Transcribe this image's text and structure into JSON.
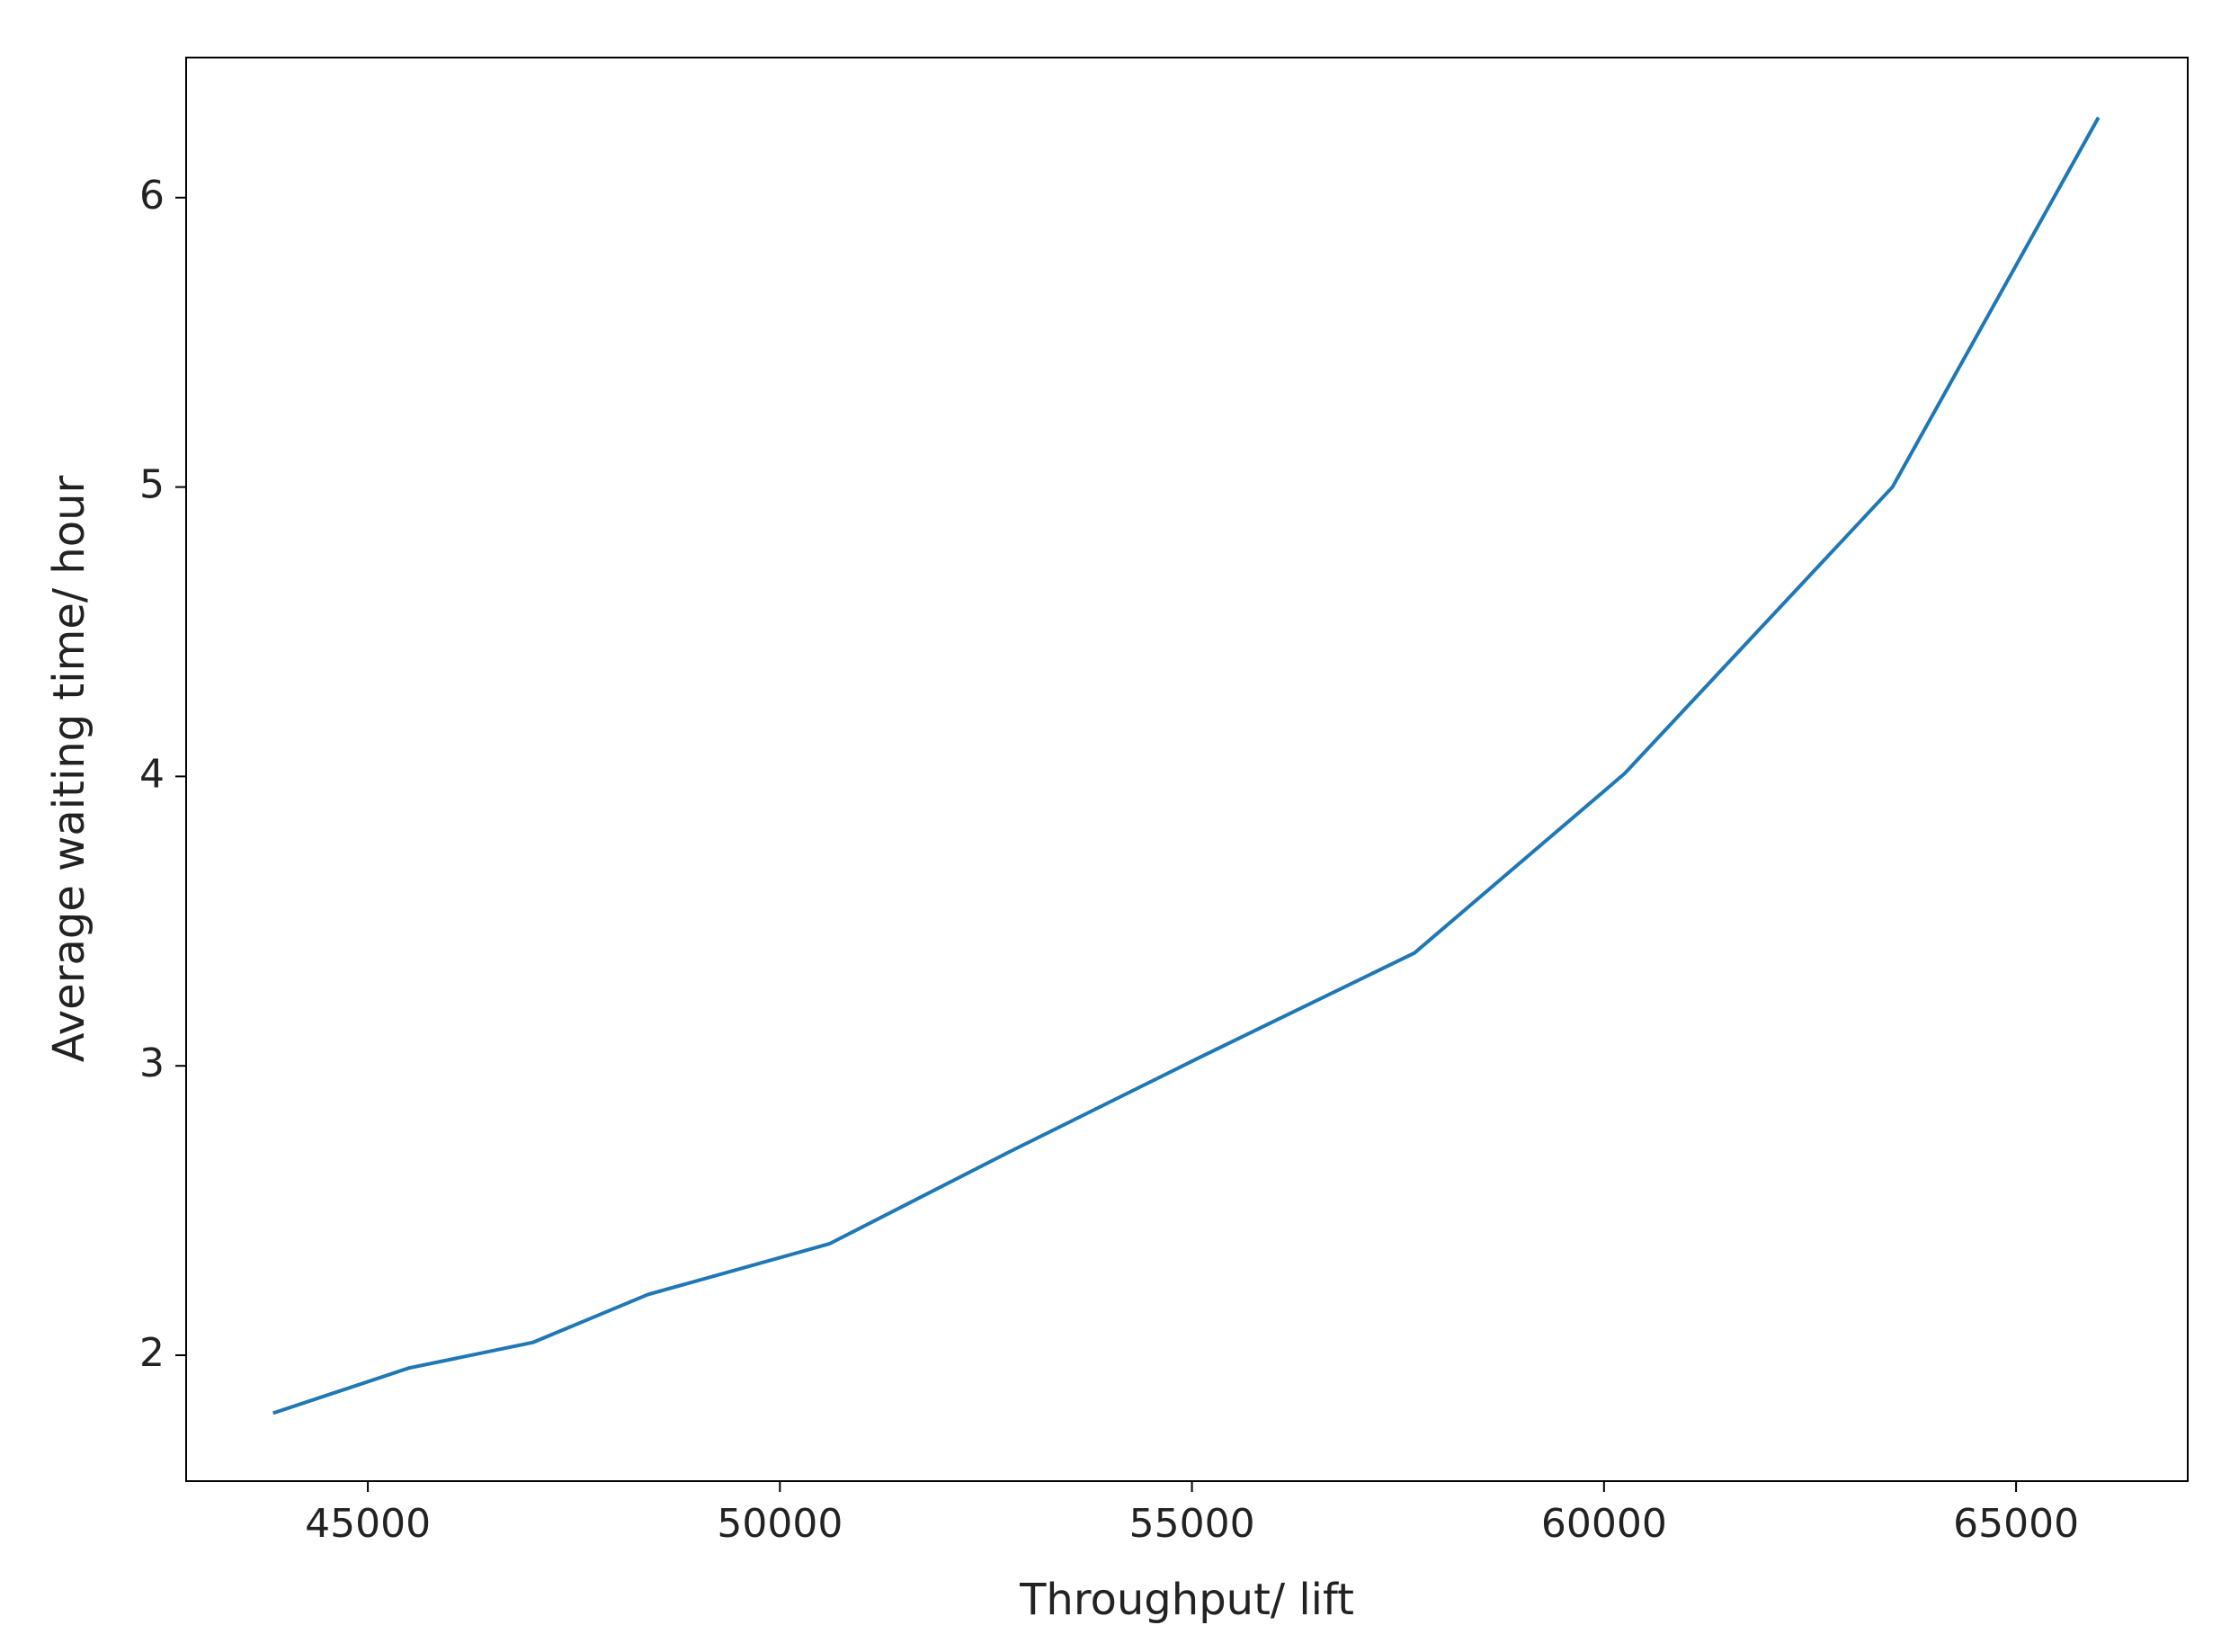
{
  "chart_data": {
    "type": "line",
    "xlabel": "Throughput/ lift",
    "ylabel": "Average waiting time/ hour",
    "x": [
      43850,
      45500,
      47000,
      48400,
      50600,
      52800,
      55100,
      57700,
      60250,
      63500,
      66000
    ],
    "values": [
      1.8,
      1.956,
      2.044,
      2.21,
      2.385,
      2.705,
      3.03,
      3.39,
      4.01,
      5.0,
      6.277
    ],
    "color": "#1f77b4",
    "xlim": [
      42795,
      67083
    ],
    "xticks": [
      45000,
      50000,
      55000,
      60000,
      65000
    ],
    "ylim": [
      1.565,
      6.484
    ],
    "yticks": [
      2,
      3,
      4,
      5,
      6
    ],
    "grid": false
  }
}
